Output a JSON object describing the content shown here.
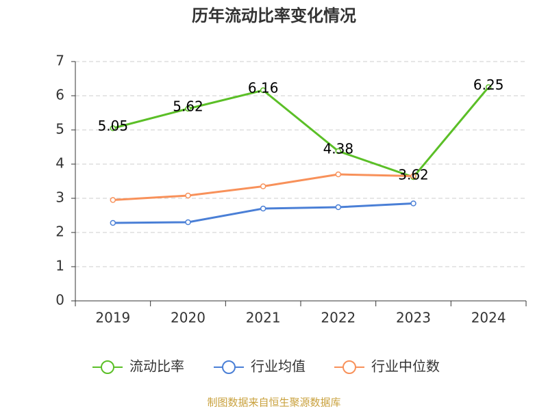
{
  "chart_data": {
    "type": "line",
    "title": "历年流动比率变化情况",
    "categories": [
      "2019",
      "2020",
      "2021",
      "2022",
      "2023",
      "2024"
    ],
    "series": [
      {
        "name": "流动比率",
        "color": "#5bbf27",
        "values": [
          5.05,
          5.62,
          6.16,
          4.38,
          3.62,
          6.25
        ],
        "show_labels": true
      },
      {
        "name": "行业均值",
        "color": "#4a7fd6",
        "values": [
          2.28,
          2.3,
          2.7,
          2.74,
          2.85,
          null
        ]
      },
      {
        "name": "行业中位数",
        "color": "#f8915a",
        "values": [
          2.95,
          3.08,
          3.35,
          3.7,
          3.65,
          null
        ]
      }
    ],
    "ylim": [
      0,
      7
    ],
    "yticks": [
      0,
      1,
      2,
      3,
      4,
      5,
      6,
      7
    ],
    "grid": true,
    "legend_position": "bottom",
    "source": "制图数据来自恒生聚源数据库"
  }
}
